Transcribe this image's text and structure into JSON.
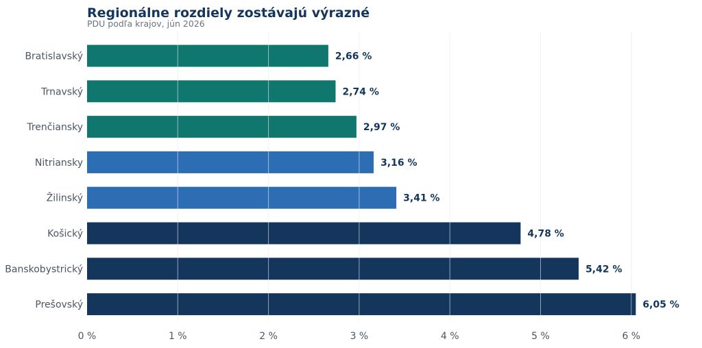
{
  "chart_data": {
    "type": "bar",
    "orientation": "horizontal",
    "title": "Regionálne rozdiely zostávajú výrazné",
    "subtitle": "PDU podľa krajov, jún 2026",
    "xlabel": "",
    "ylabel": "",
    "xlim": [
      0,
      6.5
    ],
    "grid": true,
    "categories": [
      "Bratislavský",
      "Trnavský",
      "Trenčiansky",
      "Nitriansky",
      "Žilinský",
      "Košický",
      "Banskobystrický",
      "Prešovský"
    ],
    "values": [
      2.66,
      2.74,
      2.97,
      3.16,
      3.41,
      4.78,
      5.42,
      6.05
    ],
    "value_labels": [
      "2,66 %",
      "2,74 %",
      "2,97 %",
      "3,16 %",
      "3,41 %",
      "4,78 %",
      "5,42 %",
      "6,05 %"
    ],
    "ticks": [
      0,
      1,
      2,
      3,
      4,
      5,
      6
    ],
    "tick_labels": [
      "0 %",
      "1 %",
      "2 %",
      "3 %",
      "4 %",
      "5 %",
      "6 %"
    ],
    "colors": {
      "teal": "#10776f",
      "blue": "#2d6db3",
      "navy": "#14365c",
      "grid": "#e5e7eb"
    },
    "bar_colors": [
      "#10776f",
      "#10776f",
      "#10776f",
      "#2d6db3",
      "#2d6db3",
      "#14365c",
      "#14365c",
      "#14365c"
    ]
  }
}
